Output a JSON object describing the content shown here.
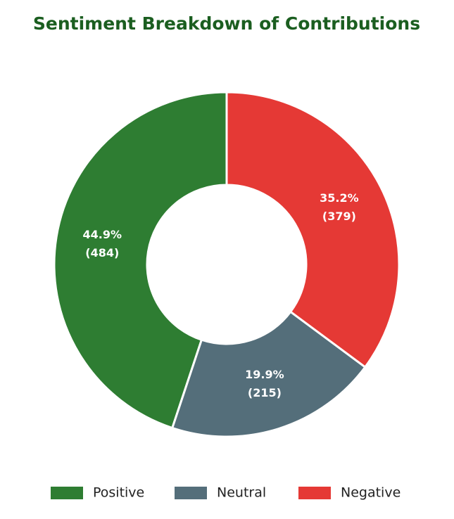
{
  "chart_data": {
    "type": "donut",
    "title": "Sentiment Breakdown of Contributions",
    "categories": [
      "Positive",
      "Neutral",
      "Negative"
    ],
    "values": [
      484,
      215,
      379
    ],
    "value_labels": [
      "(484)",
      "(215)",
      "(379)"
    ],
    "percent_labels": [
      "44.9%",
      "19.9%",
      "35.2%"
    ],
    "colors": [
      "#2e7d32",
      "#546e7a",
      "#e53935"
    ],
    "direction": "counterclockwise",
    "legend": "bottom"
  }
}
